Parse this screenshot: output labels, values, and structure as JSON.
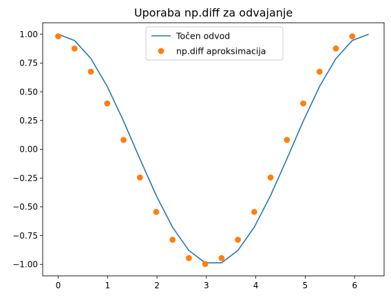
{
  "chart_data": {
    "type": "line",
    "title": "Uporaba np.diff za odvajanje",
    "xlabel": "",
    "ylabel": "",
    "xlim": [
      -0.3142,
      6.5973
    ],
    "ylim": [
      -1.1,
      1.1
    ],
    "xticks": [
      0,
      1,
      2,
      3,
      4,
      5,
      6
    ],
    "xtick_labels": [
      "0",
      "1",
      "2",
      "3",
      "4",
      "5",
      "6"
    ],
    "yticks": [
      -1.0,
      -0.75,
      -0.5,
      -0.25,
      0.0,
      0.25,
      0.5,
      0.75,
      1.0
    ],
    "ytick_labels": [
      "−1.00",
      "−0.75",
      "−0.50",
      "−0.25",
      "0.00",
      "0.25",
      "0.50",
      "0.75",
      "1.00"
    ],
    "grid": false,
    "legend_position": "top-center",
    "series": [
      {
        "name": "Točen odvod",
        "kind": "line",
        "color": "#1f77b4",
        "x": [
          0.0,
          0.3307,
          0.6614,
          0.9921,
          1.3228,
          1.6535,
          1.9842,
          2.3149,
          2.6456,
          2.9762,
          3.3069,
          3.6376,
          3.9683,
          4.299,
          4.6297,
          4.9604,
          5.2911,
          5.6218,
          5.9525,
          6.2832
        ],
        "y": [
          1.0,
          0.9458,
          0.7891,
          0.5469,
          0.2455,
          -0.0826,
          -0.4017,
          -0.6773,
          -0.8795,
          -0.9864,
          -0.9864,
          -0.8795,
          -0.6773,
          -0.4017,
          -0.0826,
          0.2455,
          0.5469,
          0.7891,
          0.9458,
          1.0
        ]
      },
      {
        "name": "np.diff aproksimacija",
        "kind": "scatter",
        "color": "#ff7f0e",
        "x": [
          0.0,
          0.3307,
          0.6614,
          0.9921,
          1.3228,
          1.6535,
          1.9842,
          2.3149,
          2.6456,
          2.9762,
          3.3069,
          3.6376,
          3.9683,
          4.299,
          4.6297,
          4.9604,
          5.2911,
          5.6218,
          5.9525
        ],
        "y": [
          0.9819,
          0.8764,
          0.6752,
          0.3985,
          0.0819,
          -0.2449,
          -0.5443,
          -0.786,
          -0.9457,
          -0.9968,
          -0.9457,
          -0.786,
          -0.5443,
          -0.2449,
          0.0819,
          0.3985,
          0.6752,
          0.8764,
          0.9819
        ]
      }
    ]
  }
}
